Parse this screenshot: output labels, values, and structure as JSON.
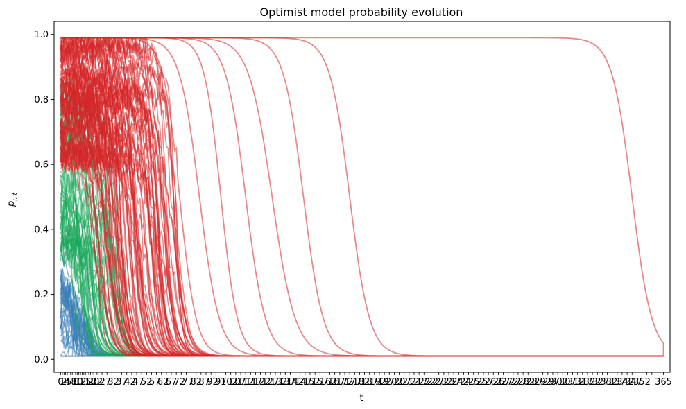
{
  "chart_data": {
    "type": "line",
    "title": "Optimist model probability evolution",
    "xlabel": "t",
    "ylabel_main": "p",
    "ylabel_sub": "i, t",
    "xlim": [
      0,
      365
    ],
    "ylim": [
      0.0,
      1.0
    ],
    "yticks": [
      "0.0",
      "0.2",
      "0.4",
      "0.6",
      "0.8",
      "1.0"
    ],
    "xticks_first": [
      "0",
      "1",
      "2",
      "4",
      "5",
      "8",
      "10",
      "12",
      "15",
      "18",
      "20"
    ],
    "xtick_last_label": "365",
    "grid": false,
    "legend": "none",
    "colors": {
      "red": "#d62728",
      "green": "#1aa85a",
      "blue": "#3a80b8",
      "floor": "#6b5a6e"
    },
    "series_groups": [
      {
        "color": "red",
        "count": 90,
        "start_range": [
          0.6,
          0.99
        ],
        "collapse_t_range": [
          20,
          70
        ]
      },
      {
        "color": "green",
        "count": 45,
        "start_range": [
          0.3,
          0.85
        ],
        "collapse_t_range": [
          8,
          35
        ]
      },
      {
        "color": "blue",
        "count": 30,
        "start_range": [
          0.02,
          0.35
        ],
        "collapse_t_range": [
          3,
          18
        ]
      }
    ],
    "red_late_series": [
      {
        "drop_t": 72,
        "width": 5,
        "start": 0.99,
        "dip_t": 70,
        "dip_value": 0.65
      },
      {
        "drop_t": 84,
        "width": 6,
        "start": 0.99
      },
      {
        "drop_t": 97,
        "width": 5,
        "start": 0.99
      },
      {
        "drop_t": 112,
        "width": 6,
        "start": 0.99
      },
      {
        "drop_t": 128,
        "width": 7,
        "start": 0.99
      },
      {
        "drop_t": 147,
        "width": 6,
        "start": 0.99,
        "shoulder_t": 140,
        "shoulder_value": 0.13
      },
      {
        "drop_t": 175,
        "width": 6,
        "start": 0.99
      },
      {
        "drop_t": 346,
        "width": 6,
        "start": 0.99
      }
    ],
    "floor_value": 0.01
  }
}
